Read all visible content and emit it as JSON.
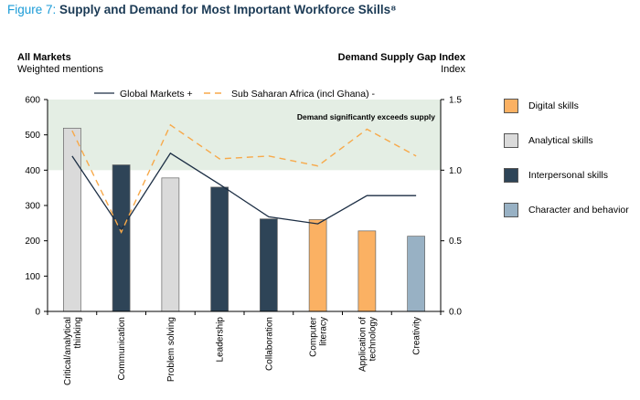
{
  "figure": {
    "prefix": "Figure 7: ",
    "title": "Supply and Demand for Most Important Workforce Skills",
    "footnote_marker": "⁸"
  },
  "left_header": {
    "title": "All Markets",
    "subtitle": "Weighted mentions"
  },
  "right_header": {
    "title": "Demand Supply Gap Index",
    "subtitle": "Index"
  },
  "chart_data": {
    "type": "bar",
    "categories": [
      "Critical/analytical thinking",
      "Communication",
      "Problem solving",
      "Leadership",
      "Collaboration",
      "Computer literacy",
      "Application of technology",
      "Creativity"
    ],
    "category_label_lines": [
      [
        "Critical/analytical",
        "thinking"
      ],
      [
        "Communication"
      ],
      [
        "Problem solving"
      ],
      [
        "Leadership"
      ],
      [
        "Collaboration"
      ],
      [
        "Computer",
        "literacy"
      ],
      [
        "Application of",
        "technology"
      ],
      [
        "Creativity"
      ]
    ],
    "values": [
      519,
      415,
      378,
      352,
      262,
      260,
      228,
      213
    ],
    "value_axis": {
      "label": "Weighted mentions",
      "ylim": [
        0,
        600
      ],
      "ticks": [
        0,
        100,
        200,
        300,
        400,
        500,
        600
      ]
    },
    "bar_groups": [
      "Analytical skills",
      "Interpersonal  skills",
      "Analytical skills",
      "Interpersonal  skills",
      "Interpersonal  skills",
      "Digital skills",
      "Digital skills",
      "Character  and behavior"
    ],
    "series": [
      {
        "name": "Global Markets +",
        "axis": "right",
        "style": "solid",
        "color": "#1c2e44",
        "values": [
          1.1,
          0.58,
          1.12,
          0.9,
          0.67,
          0.62,
          0.82,
          0.82
        ]
      },
      {
        "name": "Sub Saharan Africa (incl Ghana) -",
        "axis": "right",
        "style": "dashed",
        "color": "#f7a94a",
        "values": [
          1.28,
          0.56,
          1.32,
          1.08,
          1.1,
          1.03,
          1.29,
          1.1
        ]
      }
    ],
    "right_axis": {
      "label": "Index",
      "ylim": [
        0,
        1.5
      ],
      "ticks": [
        "0.0",
        "0.5",
        "1.0",
        "1.5"
      ]
    },
    "shaded_band": {
      "from_index": 1.0,
      "to_index": 1.5,
      "label": "Demand significantly exceeds supply",
      "color": "#e4eee4"
    },
    "legend": [
      {
        "label": "Digital skills",
        "color": "#fbb163"
      },
      {
        "label": "Analytical skills",
        "color": "#dadada"
      },
      {
        "label": "Interpersonal  skills",
        "color": "#2e4457"
      },
      {
        "label": "Character  and behavior",
        "color": "#98b1c4"
      }
    ]
  }
}
